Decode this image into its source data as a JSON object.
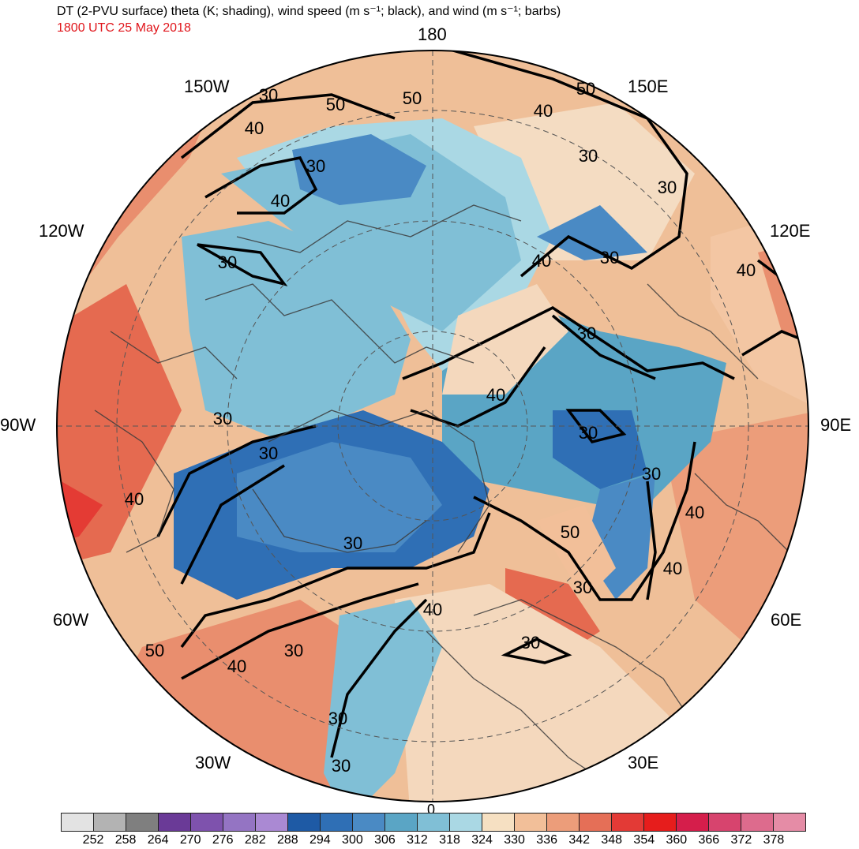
{
  "header": {
    "title": "DT (2-PVU surface) theta (K; shading), wind speed (m s⁻¹; black), and wind (m s⁻¹; barbs)",
    "valid_time": "1800 UTC 25 May 2018"
  },
  "longitude_labels": {
    "n180": "180",
    "w150": "150W",
    "e150": "150E",
    "w120": "120W",
    "e120": "120E",
    "w90": "90W",
    "e90": "90E",
    "w60": "60W",
    "e60": "60E",
    "w30": "30W",
    "e30": "30E",
    "s0": "0"
  },
  "contour_labels": [
    {
      "id": "c1",
      "text": "30"
    },
    {
      "id": "c2",
      "text": "40"
    },
    {
      "id": "c3",
      "text": "50"
    },
    {
      "id": "c4",
      "text": "50"
    },
    {
      "id": "c5",
      "text": "30"
    },
    {
      "id": "c6",
      "text": "40"
    },
    {
      "id": "c7",
      "text": "40"
    },
    {
      "id": "c8",
      "text": "50"
    },
    {
      "id": "c9",
      "text": "30"
    },
    {
      "id": "c10",
      "text": "30"
    },
    {
      "id": "c11",
      "text": "40"
    },
    {
      "id": "c12",
      "text": "30"
    },
    {
      "id": "c13",
      "text": "40"
    },
    {
      "id": "c14",
      "text": "30"
    },
    {
      "id": "c15",
      "text": "30"
    },
    {
      "id": "c16",
      "text": "40"
    },
    {
      "id": "c17",
      "text": "30"
    },
    {
      "id": "c18",
      "text": "30"
    },
    {
      "id": "c19",
      "text": "30"
    },
    {
      "id": "c20",
      "text": "40"
    },
    {
      "id": "c21",
      "text": "30"
    },
    {
      "id": "c22",
      "text": "50"
    },
    {
      "id": "c23",
      "text": "40"
    },
    {
      "id": "c24",
      "text": "40"
    },
    {
      "id": "c25",
      "text": "30"
    },
    {
      "id": "c26",
      "text": "30"
    },
    {
      "id": "c27",
      "text": "40"
    },
    {
      "id": "c28",
      "text": "50"
    },
    {
      "id": "c29",
      "text": "40"
    },
    {
      "id": "c30",
      "text": "30"
    },
    {
      "id": "c31",
      "text": "30"
    }
  ],
  "colorbar": {
    "colors": [
      "#e3e3e3",
      "#b3b3b3",
      "#7f7f7f",
      "#6a3a97",
      "#7e52ad",
      "#9474c3",
      "#aa89d3",
      "#1e5aa5",
      "#2f6fb5",
      "#4a8ac4",
      "#5aa5c5",
      "#80bfd6",
      "#aad8e4",
      "#f6e0c2",
      "#f2bf99",
      "#ec9d7a",
      "#e56f57",
      "#e33a36",
      "#e61d1c",
      "#d51e4b",
      "#d7446e",
      "#dd6b8d",
      "#e58ca6"
    ],
    "tick_labels": [
      "252",
      "258",
      "264",
      "270",
      "276",
      "282",
      "288",
      "294",
      "300",
      "306",
      "312",
      "318",
      "324",
      "330",
      "336",
      "342",
      "348",
      "354",
      "360",
      "366",
      "372",
      "378"
    ]
  }
}
